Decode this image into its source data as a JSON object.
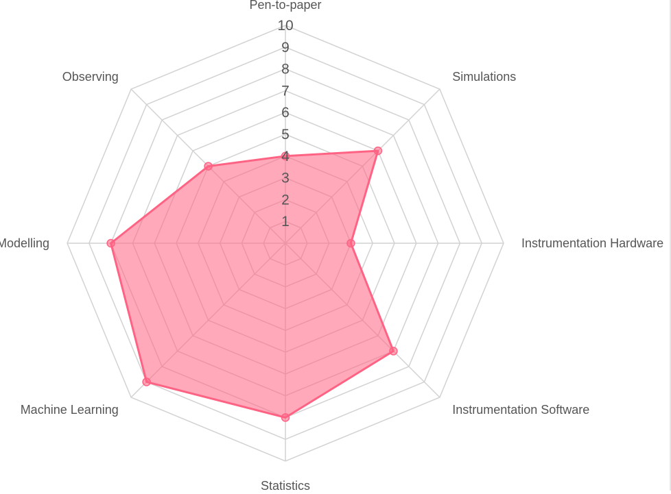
{
  "chart_data": {
    "type": "radar",
    "axes": [
      "Pen-to-paper",
      "Simulations",
      "Instrumentation Hardware",
      "Instrumentation Software",
      "Statistics",
      "Machine Learning",
      "Modelling",
      "Observing"
    ],
    "range": [
      0,
      10
    ],
    "ticks": [
      1,
      2,
      3,
      4,
      5,
      6,
      7,
      8,
      9,
      10
    ],
    "grid": true,
    "series": [
      {
        "values": [
          4,
          6,
          3,
          7,
          8,
          9,
          8,
          5
        ],
        "line_color": "#ff6384",
        "fill_color": "rgba(255, 99, 132, 0.55)"
      }
    ]
  }
}
